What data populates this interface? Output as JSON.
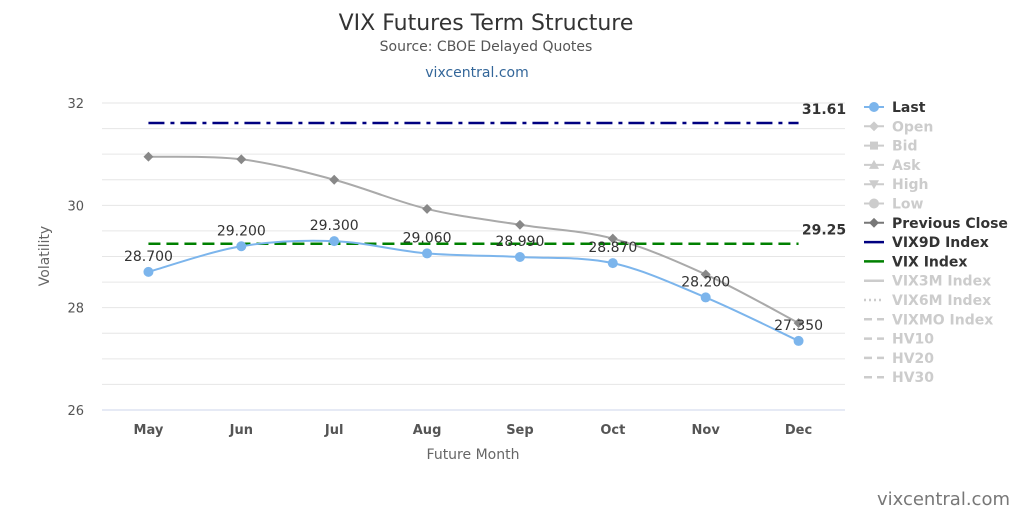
{
  "chart_data": {
    "type": "line",
    "title": "VIX Futures Term Structure",
    "subtitle": "Source: CBOE Delayed Quotes",
    "link": "vixcentral.com",
    "credit": "vixcentral.com",
    "xlabel": "Future Month",
    "ylabel": "Volatility",
    "ylim": [
      26,
      32
    ],
    "yticks": [
      "26",
      "28",
      "30",
      "32"
    ],
    "grid": true,
    "categories": [
      "May",
      "Jun",
      "Jul",
      "Aug",
      "Sep",
      "Oct",
      "Nov",
      "Dec"
    ],
    "series": [
      {
        "name": "Last",
        "values": [
          28.7,
          29.2,
          29.3,
          29.06,
          28.99,
          28.87,
          28.2,
          27.35
        ],
        "labels": [
          "28.700",
          "29.200",
          "29.300",
          "29.060",
          "28.990",
          "28.870",
          "28.200",
          "27.350"
        ],
        "color": "#7cb5ec",
        "visible": true
      },
      {
        "name": "Previous Close",
        "values": [
          30.95,
          30.9,
          30.5,
          29.93,
          29.62,
          29.35,
          28.65,
          27.7
        ],
        "color": "#aaaaaa",
        "visible": true
      }
    ],
    "reference_lines": [
      {
        "name": "VIX9D Index",
        "value": 31.61,
        "label": "31.61",
        "color": "#000080"
      },
      {
        "name": "VIX Index",
        "value": 29.25,
        "label": "29.25",
        "color": "#008000"
      }
    ],
    "legend_position": "right",
    "legend": [
      {
        "name": "Last",
        "color": "#7cb5ec",
        "active": true,
        "symbol": "circle"
      },
      {
        "name": "Open",
        "color": "#cccccc",
        "active": false,
        "symbol": "diamond"
      },
      {
        "name": "Bid",
        "color": "#cccccc",
        "active": false,
        "symbol": "square"
      },
      {
        "name": "Ask",
        "color": "#cccccc",
        "active": false,
        "symbol": "triangle"
      },
      {
        "name": "High",
        "color": "#cccccc",
        "active": false,
        "symbol": "triangle-down"
      },
      {
        "name": "Low",
        "color": "#cccccc",
        "active": false,
        "symbol": "circle"
      },
      {
        "name": "Previous Close",
        "color": "#777777",
        "active": true,
        "symbol": "diamond"
      },
      {
        "name": "VIX9D Index",
        "color": "#000080",
        "active": true,
        "symbol": "line"
      },
      {
        "name": "VIX Index",
        "color": "#008000",
        "active": true,
        "symbol": "line"
      },
      {
        "name": "VIX3M Index",
        "color": "#cccccc",
        "active": false,
        "symbol": "line"
      },
      {
        "name": "VIX6M Index",
        "color": "#cccccc",
        "active": false,
        "symbol": "line"
      },
      {
        "name": "VIXMO Index",
        "color": "#cccccc",
        "active": false,
        "symbol": "line"
      },
      {
        "name": "HV10",
        "color": "#cccccc",
        "active": false,
        "symbol": "line"
      },
      {
        "name": "HV20",
        "color": "#cccccc",
        "active": false,
        "symbol": "line"
      },
      {
        "name": "HV30",
        "color": "#cccccc",
        "active": false,
        "symbol": "line"
      }
    ]
  }
}
